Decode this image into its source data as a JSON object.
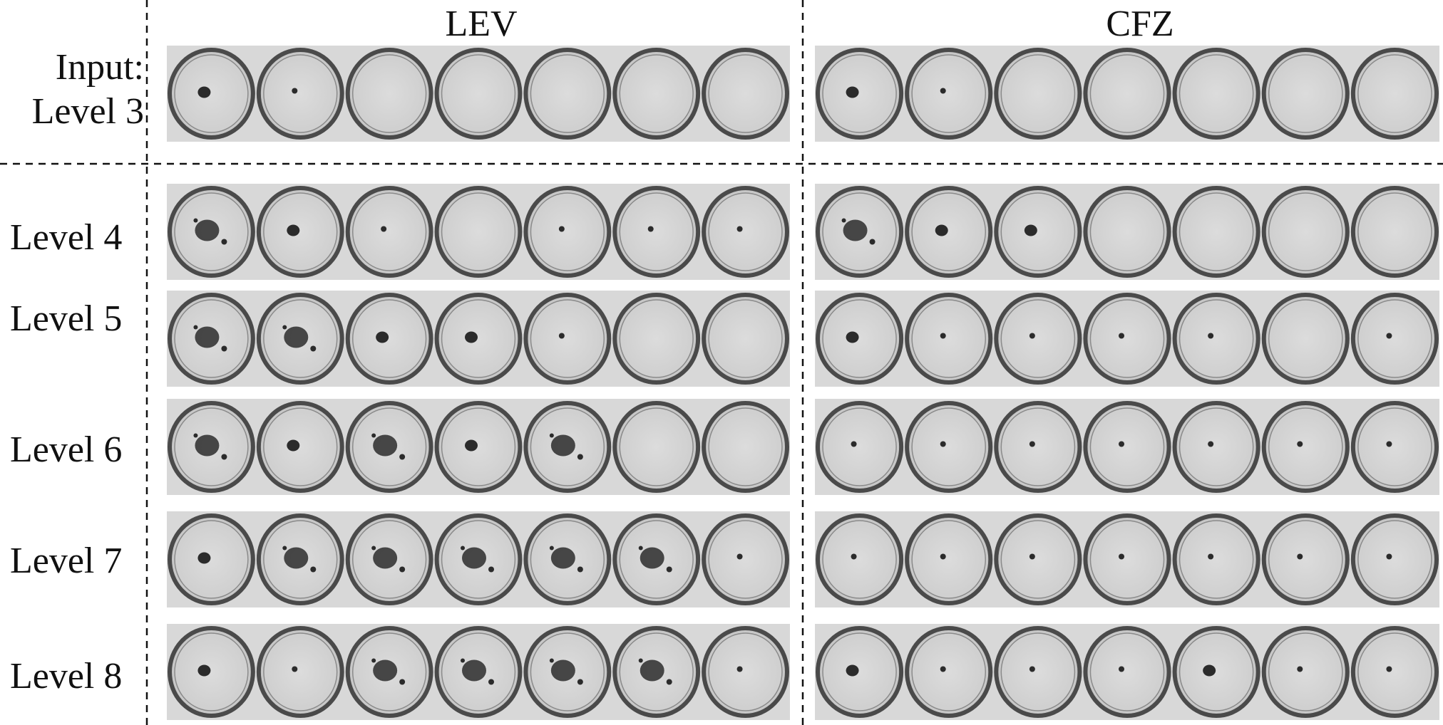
{
  "columns": [
    "LEV",
    "CFZ"
  ],
  "input_row": {
    "line1": "Input:",
    "line2": "Level 3"
  },
  "levels": [
    "Level 4",
    "Level 5",
    "Level 6",
    "Level 7",
    "Level 8"
  ],
  "wells_per_strip": 7,
  "colors": {
    "background": "#ffffff",
    "strip_background": "#d8d8d8",
    "well_fill": "#d2d2d2",
    "well_rim": "#4a4a4a",
    "colony": "#2b2b2b",
    "divider": "#111111"
  }
}
